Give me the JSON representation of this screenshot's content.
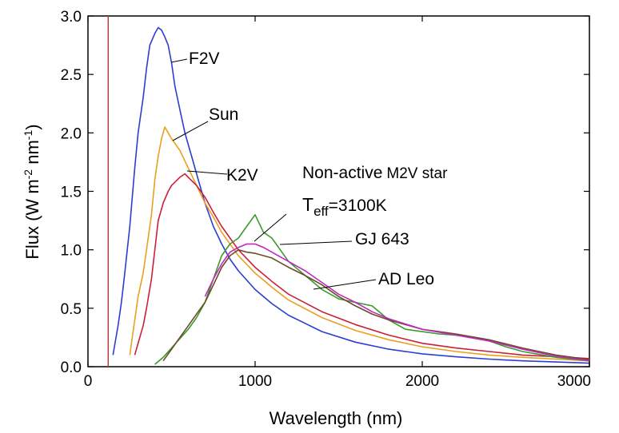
{
  "chart_data": {
    "type": "line",
    "title": "",
    "xlabel": "Wavelength (nm)",
    "ylabel_parts": [
      "Flux (W m",
      "-2",
      " nm",
      "-1",
      ")"
    ],
    "xlim": [
      0,
      3000
    ],
    "ylim": [
      0,
      3.0
    ],
    "x_ticks": [
      0,
      1000,
      2000,
      3000
    ],
    "x_tick_labels": [
      "0",
      "1000",
      "2000",
      "3000"
    ],
    "y_ticks": [
      0,
      0.5,
      1.0,
      1.5,
      2.0,
      2.5,
      3.0
    ],
    "y_tick_labels": [
      "0.0",
      "0.5",
      "1.0",
      "1.5",
      "2.0",
      "2.5",
      "3.0"
    ],
    "grid": false,
    "legend": "none (series labelled by annotations)",
    "vertical_line": {
      "x": 121,
      "color": "#b04040"
    },
    "annotations": {
      "f2v": "F2V",
      "sun": "Sun",
      "k2v": "K2V",
      "m2v_line1_a": "Non-active",
      "m2v_line1_b": "M2V star",
      "teff_prefix": "T",
      "teff_sub": "eff",
      "teff_value": "=3100K",
      "gj643": "GJ 643",
      "adleo": "AD Leo"
    },
    "series": [
      {
        "label": "F2V",
        "color": "#2a3fd1",
        "x": [
          150,
          180,
          200,
          220,
          250,
          280,
          300,
          330,
          350,
          370,
          400,
          420,
          440,
          460,
          480,
          500,
          520,
          550,
          580,
          620,
          660,
          700,
          750,
          800,
          850,
          900,
          1000,
          1100,
          1200,
          1400,
          1600,
          1800,
          2000,
          2200,
          2400,
          2600,
          2800,
          3000
        ],
        "y": [
          0.1,
          0.35,
          0.55,
          0.8,
          1.2,
          1.7,
          2.0,
          2.3,
          2.55,
          2.75,
          2.85,
          2.9,
          2.88,
          2.82,
          2.75,
          2.6,
          2.4,
          2.2,
          2.0,
          1.8,
          1.6,
          1.4,
          1.2,
          1.05,
          0.92,
          0.82,
          0.66,
          0.54,
          0.44,
          0.3,
          0.21,
          0.15,
          0.11,
          0.085,
          0.065,
          0.05,
          0.04,
          0.03
        ]
      },
      {
        "label": "Sun",
        "color": "#e8a020",
        "x": [
          250,
          280,
          300,
          330,
          350,
          380,
          400,
          420,
          440,
          460,
          480,
          500,
          550,
          600,
          650,
          700,
          750,
          800,
          850,
          900,
          1000,
          1100,
          1200,
          1400,
          1600,
          1800,
          2000,
          2200,
          2400,
          2600,
          2800,
          3000
        ],
        "y": [
          0.1,
          0.4,
          0.6,
          0.8,
          1.0,
          1.3,
          1.6,
          1.8,
          1.95,
          2.05,
          2.0,
          1.95,
          1.85,
          1.7,
          1.55,
          1.4,
          1.28,
          1.15,
          1.05,
          0.95,
          0.8,
          0.68,
          0.57,
          0.42,
          0.31,
          0.23,
          0.17,
          0.13,
          0.1,
          0.08,
          0.065,
          0.05
        ]
      },
      {
        "label": "K2V",
        "color": "#cc1f3a",
        "x": [
          280,
          300,
          330,
          350,
          380,
          400,
          420,
          450,
          480,
          500,
          550,
          580,
          600,
          650,
          700,
          750,
          800,
          850,
          900,
          1000,
          1100,
          1200,
          1400,
          1600,
          1800,
          2000,
          2200,
          2400,
          2600,
          2800,
          3000
        ],
        "y": [
          0.1,
          0.2,
          0.35,
          0.5,
          0.75,
          1.0,
          1.25,
          1.4,
          1.5,
          1.55,
          1.62,
          1.65,
          1.62,
          1.55,
          1.45,
          1.32,
          1.2,
          1.1,
          1.0,
          0.85,
          0.73,
          0.62,
          0.47,
          0.36,
          0.27,
          0.2,
          0.16,
          0.13,
          0.1,
          0.085,
          0.07
        ]
      },
      {
        "label": "Non-active M2V star Teff=3100K",
        "color": "#3a9a2a",
        "x": [
          400,
          450,
          500,
          550,
          600,
          650,
          700,
          750,
          800,
          850,
          900,
          950,
          1000,
          1050,
          1100,
          1150,
          1200,
          1300,
          1400,
          1500,
          1600,
          1700,
          1800,
          1900,
          2000,
          2100,
          2200,
          2300,
          2400,
          2500,
          2600,
          2800,
          3000
        ],
        "y": [
          0.02,
          0.08,
          0.16,
          0.24,
          0.32,
          0.42,
          0.55,
          0.75,
          0.95,
          1.05,
          1.1,
          1.2,
          1.3,
          1.15,
          1.1,
          1.0,
          0.9,
          0.78,
          0.66,
          0.58,
          0.55,
          0.52,
          0.4,
          0.32,
          0.3,
          0.28,
          0.27,
          0.25,
          0.22,
          0.17,
          0.13,
          0.08,
          0.05
        ]
      },
      {
        "label": "GJ 643",
        "color": "#6b4a2a",
        "x": [
          450,
          500,
          550,
          600,
          650,
          700,
          750,
          800,
          850,
          900,
          950,
          1000,
          1100,
          1200,
          1300,
          1400,
          1500,
          1600,
          1700,
          1800,
          2000,
          2200,
          2400,
          2600,
          2800,
          3000
        ],
        "y": [
          0.05,
          0.15,
          0.25,
          0.35,
          0.45,
          0.55,
          0.7,
          0.85,
          0.95,
          1.0,
          0.98,
          0.97,
          0.93,
          0.85,
          0.78,
          0.7,
          0.6,
          0.52,
          0.45,
          0.4,
          0.32,
          0.28,
          0.23,
          0.16,
          0.1,
          0.06
        ]
      },
      {
        "label": "AD Leo",
        "color": "#c028c0",
        "x": [
          700,
          750,
          800,
          850,
          900,
          950,
          1000,
          1050,
          1100,
          1200,
          1300,
          1400,
          1500,
          1600,
          1700,
          1800,
          2000,
          2200,
          2400,
          2600,
          2800,
          3000
        ],
        "y": [
          0.6,
          0.75,
          0.88,
          0.98,
          1.02,
          1.05,
          1.05,
          1.02,
          0.98,
          0.9,
          0.82,
          0.72,
          0.62,
          0.55,
          0.47,
          0.41,
          0.32,
          0.27,
          0.22,
          0.15,
          0.09,
          0.05
        ]
      }
    ]
  }
}
